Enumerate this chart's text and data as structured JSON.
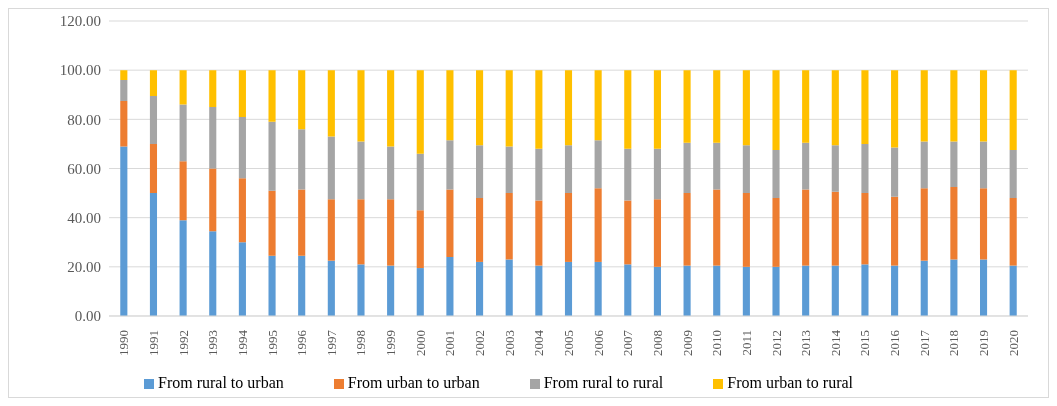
{
  "chart_data": {
    "type": "bar",
    "stacked": true,
    "categories": [
      "1990",
      "1991",
      "1992",
      "1993",
      "1994",
      "1995",
      "1996",
      "1997",
      "1998",
      "1999",
      "2000",
      "2001",
      "2002",
      "2003",
      "2004",
      "2005",
      "2006",
      "2007",
      "2008",
      "2009",
      "2010",
      "2011",
      "2012",
      "2013",
      "2014",
      "2015",
      "2016",
      "2017",
      "2018",
      "2019",
      "2020"
    ],
    "series": [
      {
        "name": "From rural to urban",
        "color": "#5b9bd5",
        "values": [
          69,
          50,
          39,
          34.5,
          30,
          24.5,
          24.5,
          22.5,
          21,
          20.5,
          19.5,
          24,
          22,
          23,
          20.5,
          22,
          22,
          21,
          20,
          20.5,
          20.5,
          20,
          20,
          20.5,
          20.5,
          21,
          20.5,
          22.5,
          23,
          23,
          20.5
        ]
      },
      {
        "name": "From urban to urban",
        "color": "#ed7d31",
        "values": [
          18.5,
          20,
          24,
          25.5,
          26,
          26.5,
          27,
          25,
          26.5,
          27,
          23.5,
          27.5,
          26,
          27,
          26.5,
          28,
          30,
          26,
          27.5,
          29.5,
          31,
          30,
          28,
          31,
          30,
          29,
          28,
          29.5,
          29.5,
          29,
          27.5
        ]
      },
      {
        "name": "From rural to rural",
        "color": "#a5a5a5",
        "values": [
          8.5,
          19.5,
          23,
          25,
          25,
          28,
          24.5,
          25.5,
          23.5,
          21.5,
          23,
          20,
          21.5,
          19,
          21,
          19.5,
          19.5,
          21,
          20.5,
          20.5,
          19,
          19.5,
          19.5,
          19,
          19,
          20,
          20,
          19,
          18.5,
          19,
          19.5
        ]
      },
      {
        "name": "From urban to rural",
        "color": "#ffc000",
        "values": [
          4,
          10.5,
          14,
          15,
          19,
          21,
          24,
          27,
          29,
          31,
          34,
          28.5,
          30.5,
          31,
          32,
          30.5,
          28.5,
          32,
          32,
          29.5,
          29.5,
          30.5,
          32.5,
          29.5,
          30.5,
          30,
          31.5,
          29,
          29,
          29,
          32.5
        ]
      }
    ],
    "ylim": [
      0,
      120
    ],
    "yticks": [
      {
        "value": 0,
        "label": "0.00"
      },
      {
        "value": 20,
        "label": "20.00"
      },
      {
        "value": 40,
        "label": "40.00"
      },
      {
        "value": 60,
        "label": "60.00"
      },
      {
        "value": 80,
        "label": "80.00"
      },
      {
        "value": 100,
        "label": "100.00"
      },
      {
        "value": 120,
        "label": "120.00"
      }
    ],
    "grid": "y",
    "legend": "bottom"
  }
}
